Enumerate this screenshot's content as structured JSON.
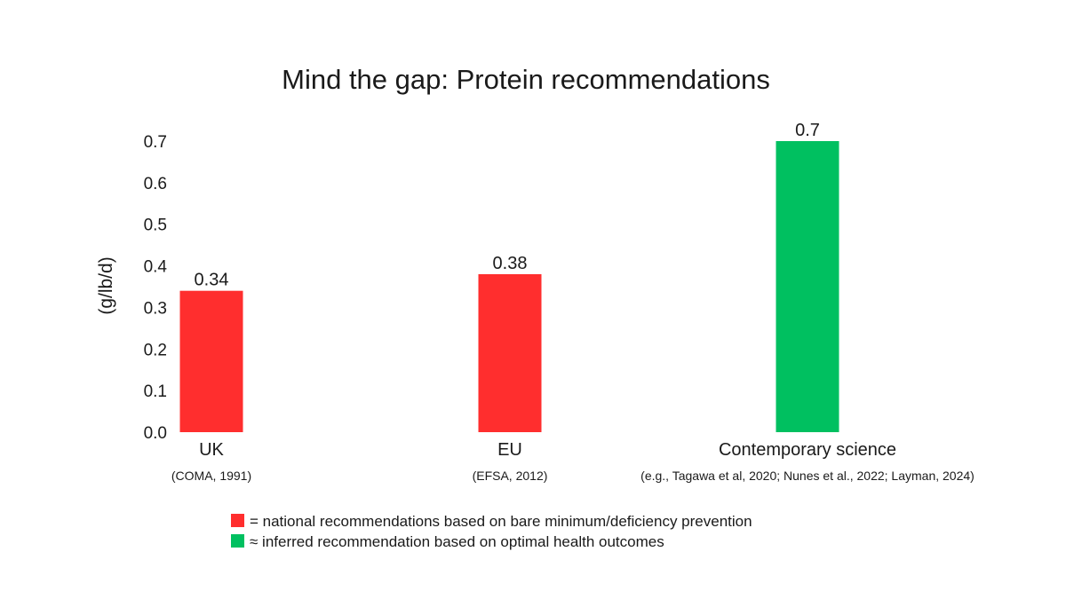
{
  "chart_data": {
    "type": "bar",
    "title": "Mind the gap: Protein recommendations",
    "xlabel": "",
    "ylabel": "(g/lb/d)",
    "ylim": [
      0,
      0.7
    ],
    "yticks": [
      "0.0",
      "0.1",
      "0.2",
      "0.3",
      "0.4",
      "0.5",
      "0.6",
      "0.7"
    ],
    "grid": false,
    "categories": [
      "UK",
      "EU",
      "Contemporary science"
    ],
    "category_notes": [
      "(COMA, 1991)",
      "(EFSA, 2012)",
      "(e.g., Tagawa et al, 2020; Nunes et al., 2022; Layman, 2024)"
    ],
    "values": [
      0.34,
      0.38,
      0.7
    ],
    "value_labels": [
      "0.34",
      "0.38",
      "0.7"
    ],
    "bar_colors": [
      "#ff2e2e",
      "#ff2e2e",
      "#00c060"
    ],
    "legend": {
      "placement": "bottom-center",
      "entries": [
        {
          "color": "#ff2e2e",
          "label": "= national recommendations based on bare minimum/deficiency prevention"
        },
        {
          "color": "#00c060",
          "label": "≈ inferred recommendation based on optimal health outcomes"
        }
      ]
    }
  }
}
